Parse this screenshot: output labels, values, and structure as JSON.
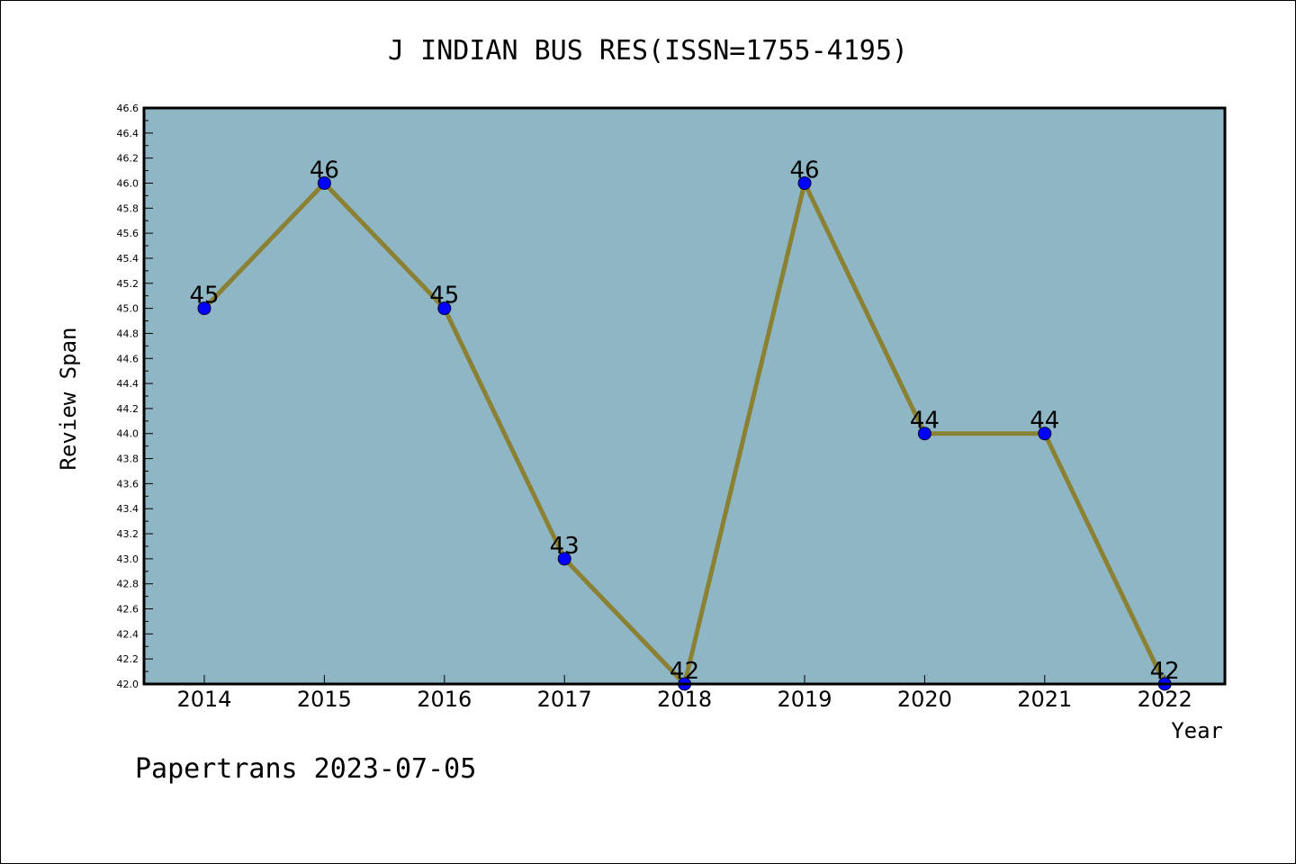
{
  "chart_data": {
    "type": "line",
    "title": "J INDIAN BUS RES(ISSN=1755-4195)",
    "xlabel": "Year",
    "ylabel": "Review Span",
    "categories": [
      "2014",
      "2015",
      "2016",
      "2017",
      "2018",
      "2019",
      "2020",
      "2021",
      "2022"
    ],
    "series": [
      {
        "values": [
          45,
          46,
          45,
          43,
          42,
          46,
          44,
          44,
          42
        ]
      }
    ],
    "data_labels": [
      "45",
      "46",
      "45",
      "43",
      "42",
      "46",
      "44",
      "44",
      "42"
    ],
    "ylim": [
      42.0,
      46.6
    ],
    "yticks": [
      "42.0",
      "42.2",
      "42.4",
      "42.6",
      "42.8",
      "43.0",
      "43.2",
      "43.4",
      "43.6",
      "43.8",
      "44.0",
      "44.2",
      "44.4",
      "44.6",
      "44.8",
      "45.0",
      "45.2",
      "45.4",
      "45.6",
      "45.8",
      "46.0",
      "46.2",
      "46.4",
      "46.6"
    ],
    "grid": false,
    "legend": "none",
    "colors": {
      "plot_background": "#8fb6c5",
      "line": "#8b8134",
      "marker": "#0000ff",
      "marker_edge": "#000033"
    }
  },
  "footer": {
    "text": "Papertrans 2023-07-05"
  }
}
